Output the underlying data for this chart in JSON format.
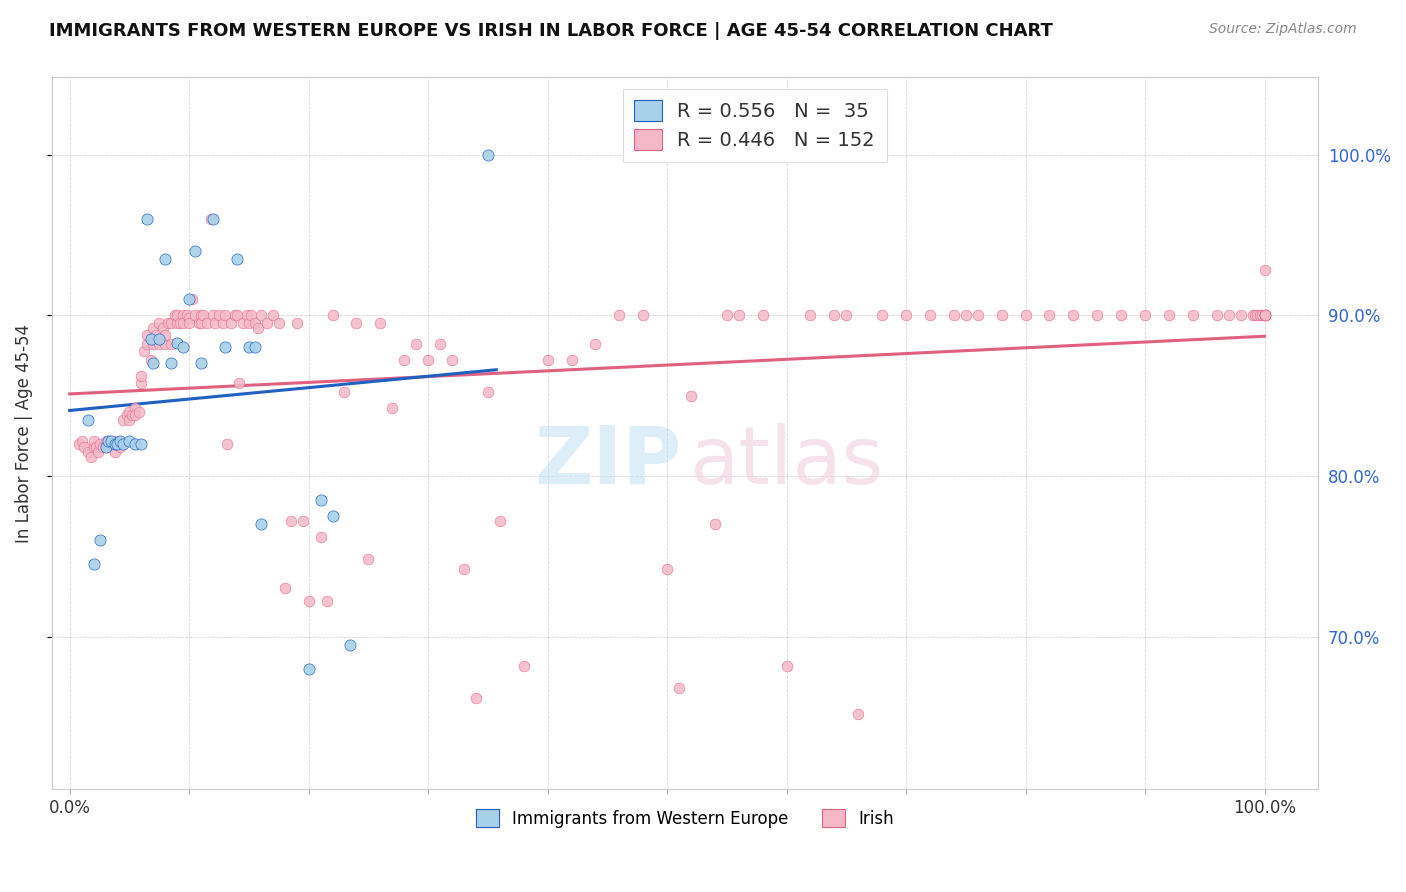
{
  "title": "IMMIGRANTS FROM WESTERN EUROPE VS IRISH IN LABOR FORCE | AGE 45-54 CORRELATION CHART",
  "source": "Source: ZipAtlas.com",
  "ylabel": "In Labor Force | Age 45-54",
  "legend_r_blue": "0.556",
  "legend_n_blue": "35",
  "legend_r_pink": "0.446",
  "legend_n_pink": "152",
  "legend_label_blue": "Immigrants from Western Europe",
  "legend_label_pink": "Irish",
  "blue_color": "#a8d0e8",
  "pink_color": "#f4b8c8",
  "blue_line_color": "#2060c0",
  "pink_line_color": "#e06080",
  "blue_x": [
    0.015,
    0.02,
    0.025,
    0.03,
    0.032,
    0.035,
    0.038,
    0.04,
    0.042,
    0.045,
    0.05,
    0.055,
    0.06,
    0.065,
    0.068,
    0.07,
    0.075,
    0.08,
    0.085,
    0.09,
    0.095,
    0.1,
    0.105,
    0.11,
    0.12,
    0.13,
    0.14,
    0.15,
    0.155,
    0.16,
    0.2,
    0.21,
    0.22,
    0.235,
    0.35
  ],
  "blue_y": [
    0.835,
    0.745,
    0.76,
    0.818,
    0.822,
    0.822,
    0.82,
    0.82,
    0.822,
    0.82,
    0.822,
    0.82,
    0.82,
    0.96,
    0.885,
    0.87,
    0.885,
    0.935,
    0.87,
    0.883,
    0.88,
    0.91,
    0.94,
    0.87,
    0.96,
    0.88,
    0.935,
    0.88,
    0.88,
    0.77,
    0.68,
    0.785,
    0.775,
    0.695,
    1.0
  ],
  "pink_x": [
    0.008,
    0.01,
    0.012,
    0.015,
    0.018,
    0.02,
    0.02,
    0.022,
    0.024,
    0.025,
    0.028,
    0.03,
    0.03,
    0.032,
    0.035,
    0.038,
    0.04,
    0.04,
    0.042,
    0.045,
    0.048,
    0.05,
    0.05,
    0.052,
    0.055,
    0.055,
    0.058,
    0.06,
    0.06,
    0.062,
    0.065,
    0.065,
    0.068,
    0.07,
    0.07,
    0.072,
    0.075,
    0.075,
    0.078,
    0.08,
    0.08,
    0.082,
    0.085,
    0.085,
    0.088,
    0.09,
    0.09,
    0.092,
    0.095,
    0.095,
    0.098,
    0.1,
    0.1,
    0.102,
    0.105,
    0.108,
    0.11,
    0.11,
    0.112,
    0.115,
    0.118,
    0.12,
    0.122,
    0.125,
    0.128,
    0.13,
    0.132,
    0.135,
    0.138,
    0.14,
    0.142,
    0.145,
    0.148,
    0.15,
    0.152,
    0.155,
    0.158,
    0.16,
    0.165,
    0.17,
    0.175,
    0.18,
    0.185,
    0.19,
    0.195,
    0.2,
    0.21,
    0.215,
    0.22,
    0.23,
    0.24,
    0.25,
    0.26,
    0.27,
    0.28,
    0.29,
    0.3,
    0.31,
    0.32,
    0.33,
    0.34,
    0.35,
    0.36,
    0.38,
    0.4,
    0.42,
    0.44,
    0.46,
    0.48,
    0.5,
    0.51,
    0.52,
    0.54,
    0.55,
    0.56,
    0.58,
    0.6,
    0.62,
    0.64,
    0.65,
    0.66,
    0.68,
    0.7,
    0.72,
    0.74,
    0.75,
    0.76,
    0.78,
    0.8,
    0.82,
    0.84,
    0.86,
    0.88,
    0.9,
    0.92,
    0.94,
    0.96,
    0.97,
    0.98,
    0.99,
    0.992,
    0.994,
    0.996,
    0.998,
    1.0,
    1.0,
    1.0,
    1.0,
    1.0,
    1.0,
    1.0,
    1.0
  ],
  "pink_y": [
    0.82,
    0.822,
    0.818,
    0.815,
    0.812,
    0.818,
    0.822,
    0.818,
    0.815,
    0.82,
    0.818,
    0.82,
    0.822,
    0.818,
    0.82,
    0.815,
    0.82,
    0.822,
    0.818,
    0.835,
    0.838,
    0.84,
    0.835,
    0.838,
    0.842,
    0.838,
    0.84,
    0.858,
    0.862,
    0.878,
    0.882,
    0.888,
    0.872,
    0.882,
    0.892,
    0.888,
    0.882,
    0.895,
    0.892,
    0.882,
    0.888,
    0.895,
    0.882,
    0.895,
    0.9,
    0.895,
    0.9,
    0.895,
    0.9,
    0.895,
    0.9,
    0.898,
    0.895,
    0.91,
    0.9,
    0.895,
    0.9,
    0.895,
    0.9,
    0.895,
    0.96,
    0.9,
    0.895,
    0.9,
    0.895,
    0.9,
    0.82,
    0.895,
    0.9,
    0.9,
    0.858,
    0.895,
    0.9,
    0.895,
    0.9,
    0.895,
    0.892,
    0.9,
    0.895,
    0.9,
    0.895,
    0.73,
    0.772,
    0.895,
    0.772,
    0.722,
    0.762,
    0.722,
    0.9,
    0.852,
    0.895,
    0.748,
    0.895,
    0.842,
    0.872,
    0.882,
    0.872,
    0.882,
    0.872,
    0.742,
    0.662,
    0.852,
    0.772,
    0.682,
    0.872,
    0.872,
    0.882,
    0.9,
    0.9,
    0.742,
    0.668,
    0.85,
    0.77,
    0.9,
    0.9,
    0.9,
    0.682,
    0.9,
    0.9,
    0.9,
    0.652,
    0.9,
    0.9,
    0.9,
    0.9,
    0.9,
    0.9,
    0.9,
    0.9,
    0.9,
    0.9,
    0.9,
    0.9,
    0.9,
    0.9,
    0.9,
    0.9,
    0.9,
    0.9,
    0.9,
    0.9,
    0.9,
    0.9,
    0.9,
    0.9,
    0.9,
    0.9,
    0.9,
    0.9,
    0.9,
    0.9,
    0.928
  ]
}
